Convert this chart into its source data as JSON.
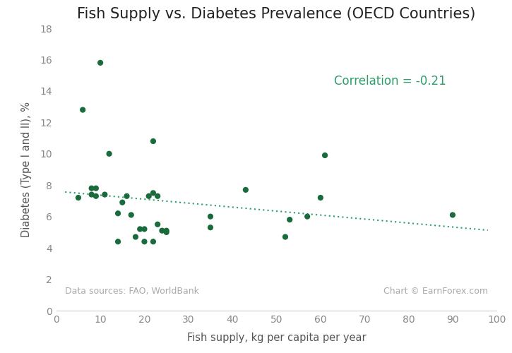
{
  "title": "Fish Supply vs. Diabetes Prevalence (OECD Countries)",
  "xlabel": "Fish supply, kg per capita per year",
  "ylabel": "Diabetes (Type I and II), %",
  "correlation_text": "Correlation = -0.21",
  "data_source": "Data sources: FAO, WorldBank",
  "chart_credit": "Chart © EarnForex.com",
  "dot_color": "#1a6b3c",
  "trend_color": "#2e9e6b",
  "x": [
    5,
    6,
    8,
    8,
    9,
    9,
    10,
    11,
    12,
    14,
    14,
    15,
    16,
    17,
    18,
    19,
    20,
    20,
    21,
    22,
    22,
    23,
    23,
    24,
    25,
    25,
    22,
    35,
    35,
    43,
    52,
    53,
    57,
    60,
    61,
    90
  ],
  "y": [
    7.2,
    12.8,
    7.8,
    7.4,
    7.8,
    7.3,
    15.8,
    7.4,
    10.0,
    6.2,
    4.4,
    6.9,
    7.3,
    6.1,
    4.7,
    5.2,
    5.2,
    4.4,
    7.3,
    7.5,
    4.4,
    7.3,
    5.5,
    5.1,
    5.1,
    5.0,
    10.8,
    6.0,
    5.3,
    7.7,
    4.7,
    5.8,
    6.0,
    7.2,
    9.9,
    6.1
  ],
  "xlim": [
    0,
    100
  ],
  "ylim": [
    0,
    18
  ],
  "xticks": [
    0,
    10,
    20,
    30,
    40,
    50,
    60,
    70,
    80,
    90,
    100
  ],
  "yticks": [
    0,
    2,
    4,
    6,
    8,
    10,
    12,
    14,
    16,
    18
  ],
  "marker_size": 35,
  "title_fontsize": 15,
  "label_fontsize": 10.5,
  "tick_fontsize": 10,
  "corr_fontsize": 12,
  "note_fontsize": 9,
  "background_color": "#ffffff",
  "title_color": "#222222",
  "label_color": "#555555",
  "tick_color": "#888888",
  "note_color": "#aaaaaa",
  "spine_color": "#cccccc"
}
